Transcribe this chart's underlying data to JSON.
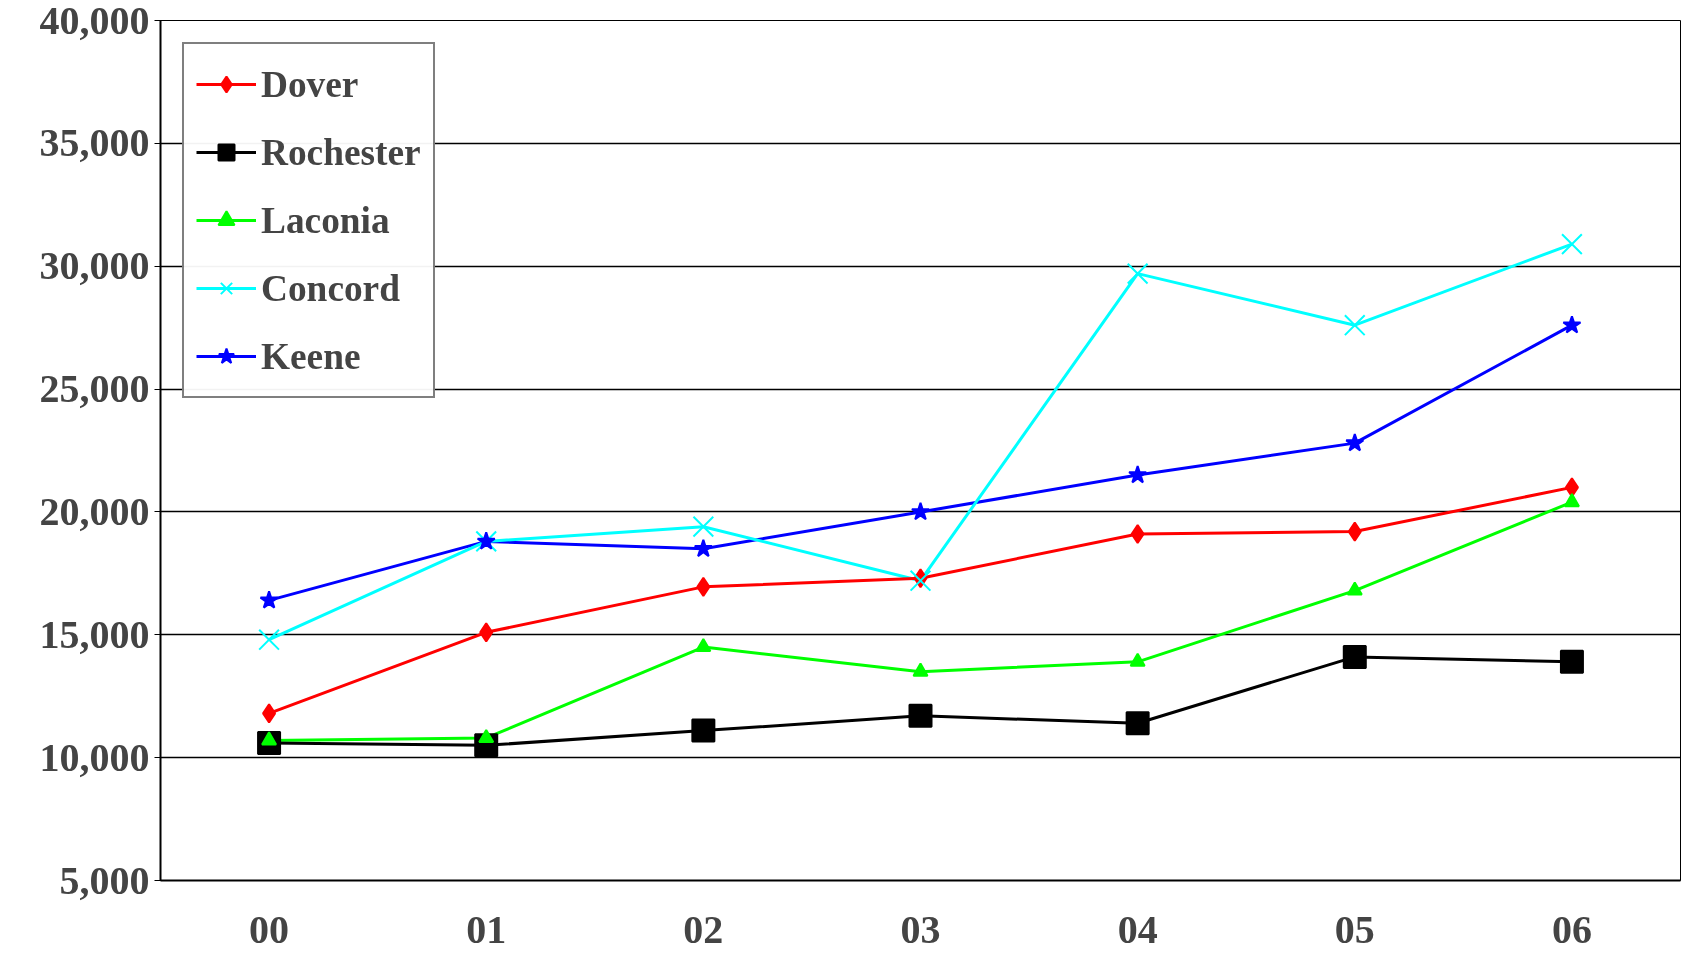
{
  "chart_data": {
    "type": "line",
    "categories": [
      "00",
      "01",
      "02",
      "03",
      "04",
      "05",
      "06"
    ],
    "series": [
      {
        "name": "Dover",
        "color": "#ff0000",
        "marker": "diamond",
        "values": [
          11800,
          15100,
          16950,
          17300,
          19100,
          19200,
          21000
        ]
      },
      {
        "name": "Rochester",
        "color": "#000000",
        "marker": "square",
        "values": [
          10600,
          10500,
          11100,
          11700,
          11400,
          14100,
          13900
        ]
      },
      {
        "name": "Laconia",
        "color": "#00ff00",
        "marker": "triangle",
        "values": [
          10700,
          10800,
          14500,
          13500,
          13900,
          16800,
          20400
        ]
      },
      {
        "name": "Concord",
        "color": "#00ffff",
        "marker": "cross",
        "values": [
          14800,
          18800,
          19400,
          17200,
          29700,
          27600,
          30900
        ]
      },
      {
        "name": "Keene",
        "color": "#0000ff",
        "marker": "star",
        "values": [
          16400,
          18800,
          18500,
          20000,
          21500,
          22800,
          27600
        ]
      }
    ],
    "ylim": [
      5000,
      40000
    ],
    "yticks": [
      {
        "value": 5000,
        "label": "5,000"
      },
      {
        "value": 10000,
        "label": "10,000"
      },
      {
        "value": 15000,
        "label": "15,000"
      },
      {
        "value": 20000,
        "label": "20,000"
      },
      {
        "value": 25000,
        "label": "25,000"
      },
      {
        "value": 30000,
        "label": "30,000"
      },
      {
        "value": 35000,
        "label": "35,000"
      },
      {
        "value": 40000,
        "label": "40,000"
      }
    ],
    "grid": "y",
    "legend": "top left",
    "line_style": "solid"
  }
}
